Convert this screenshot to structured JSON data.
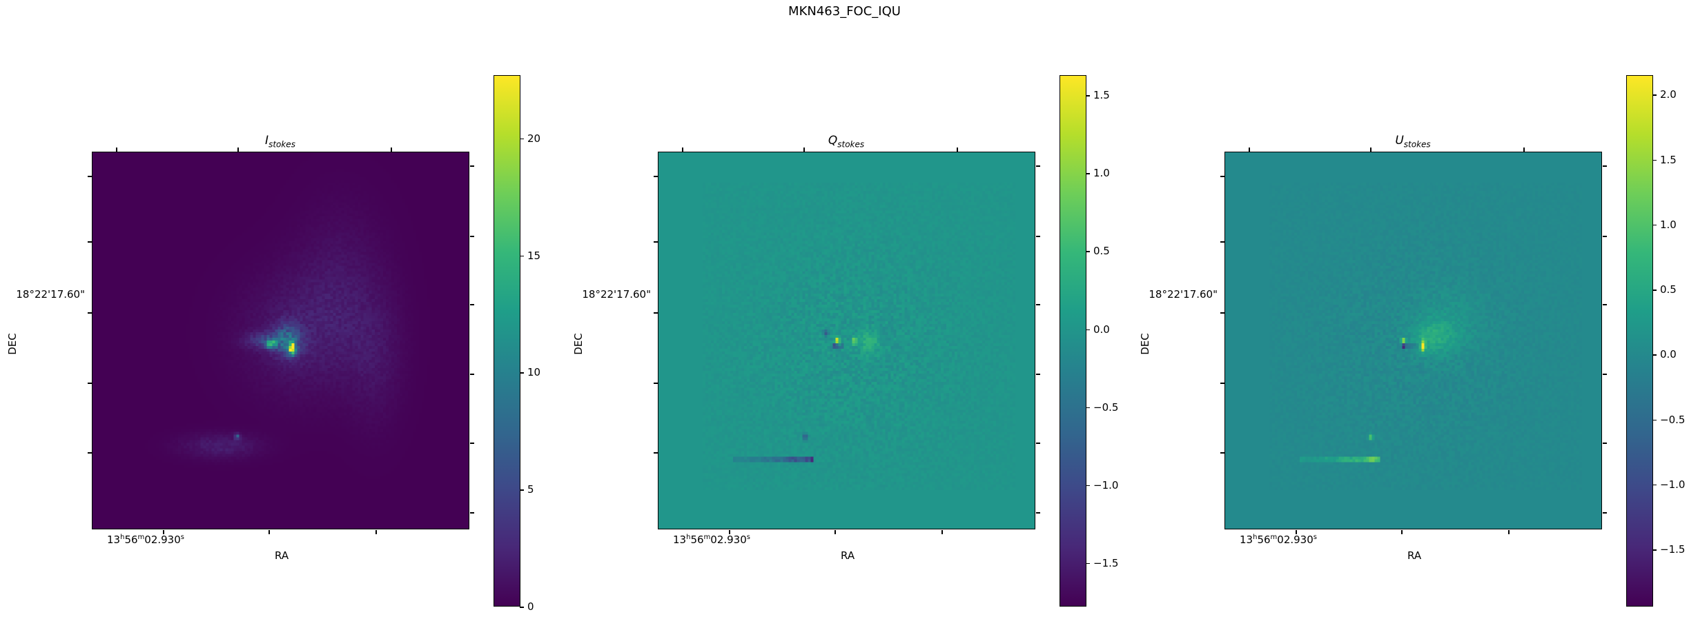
{
  "figure": {
    "title": "MKN463_FOC_IQU"
  },
  "chart_data": [
    {
      "type": "heatmap",
      "title_base": "I",
      "title_sub": "stokes",
      "xlabel": "RA",
      "ylabel": "DEC",
      "x_tick_label": {
        "h": "13",
        "m": "56",
        "s": "02.930"
      },
      "y_tick_label": "18°22'17.60\"",
      "colormap": "viridis",
      "colorbar": {
        "vmin": 0,
        "vmax": 22.7,
        "ticks": [
          0,
          5,
          10,
          15,
          20
        ],
        "tick_labels": [
          "0",
          "5",
          "10",
          "15",
          "20"
        ]
      },
      "background_value": 0
    },
    {
      "type": "heatmap",
      "title_base": "Q",
      "title_sub": "stokes",
      "xlabel": "RA",
      "ylabel": "DEC",
      "x_tick_label": {
        "h": "13",
        "m": "56",
        "s": "02.930"
      },
      "y_tick_label": "18°22'17.60\"",
      "colormap": "viridis",
      "colorbar": {
        "vmin": -1.78,
        "vmax": 1.63,
        "ticks": [
          -1.5,
          -1.0,
          -0.5,
          0.0,
          0.5,
          1.0,
          1.5
        ],
        "tick_labels": [
          "−1.5",
          "−1.0",
          "−0.5",
          "0.0",
          "0.5",
          "1.0",
          "1.5"
        ]
      },
      "background_value": 0
    },
    {
      "type": "heatmap",
      "title_base": "U",
      "title_sub": "stokes",
      "xlabel": "RA",
      "ylabel": "DEC",
      "x_tick_label": {
        "h": "13",
        "m": "56",
        "s": "02.930"
      },
      "y_tick_label": "18°22'17.60\"",
      "colormap": "viridis",
      "colorbar": {
        "vmin": -1.94,
        "vmax": 2.15,
        "ticks": [
          -1.5,
          -1.0,
          -0.5,
          0.0,
          0.5,
          1.0,
          1.5,
          2.0
        ],
        "tick_labels": [
          "−1.5",
          "−1.0",
          "−0.5",
          "0.0",
          "0.5",
          "1.0",
          "1.5",
          "2.0"
        ]
      },
      "background_value": 0
    }
  ]
}
